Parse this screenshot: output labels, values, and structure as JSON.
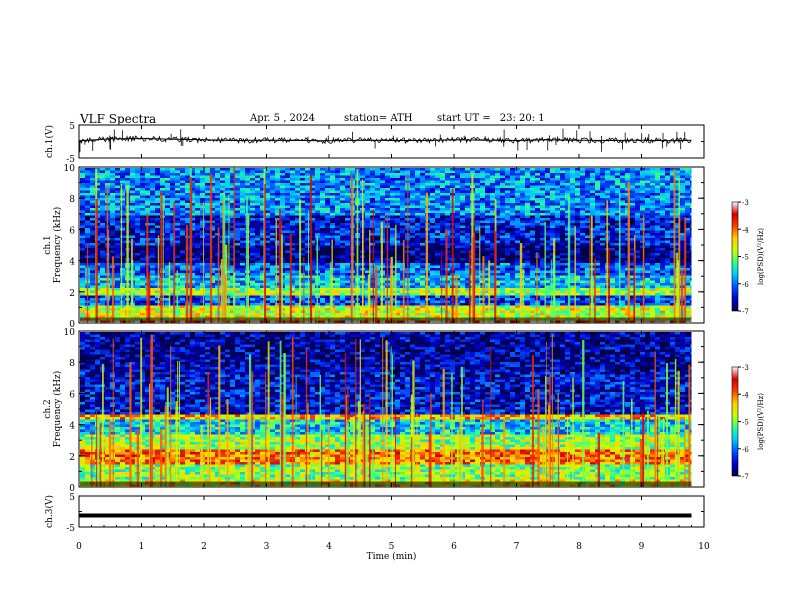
{
  "header": {
    "title": "VLF  Spectra",
    "date": "Apr. 5  , 2024",
    "station": "station= ATH",
    "start_label": "start  UT  =",
    "start_value": "23: 20: 1"
  },
  "colors": {
    "colormap": [
      "#00004a",
      "#0000c8",
      "#0050ff",
      "#00c8ff",
      "#30ff90",
      "#c8ff00",
      "#ffd000",
      "#ff4000",
      "#d00000",
      "#ffffff"
    ]
  },
  "chart_data": [
    {
      "type": "line",
      "id": "ch1-waveform",
      "ylabel": "ch.1(V)",
      "ylim": [
        -5,
        5
      ],
      "yticks": [
        -5,
        5
      ],
      "xlim": [
        0,
        10
      ],
      "x": [
        0,
        0.5,
        1,
        1.5,
        2,
        2.5,
        3,
        3.5,
        4,
        4.5,
        5,
        5.5,
        6,
        6.5,
        7,
        7.5,
        8,
        8.5,
        9,
        9.5,
        9.8
      ],
      "y": [
        0.2,
        0.8,
        0.9,
        0.7,
        0.5,
        0.3,
        0.4,
        0.3,
        0.2,
        0.4,
        0.3,
        0.3,
        0.5,
        0.4,
        0.3,
        0.5,
        0.4,
        0.3,
        0.4,
        0.2,
        0.4
      ]
    },
    {
      "type": "heatmap",
      "id": "ch1-spectrogram",
      "ylabel": "ch.1\nFrequency (kHz)",
      "ylim": [
        0,
        10
      ],
      "yticks": [
        0,
        2,
        4,
        6,
        8,
        10
      ],
      "xlim": [
        0,
        10
      ],
      "data_end_min": 9.8,
      "colorbar": {
        "label": "log(PSD)(V²/Hz)",
        "range": [
          -7,
          -3
        ],
        "ticks": [
          -7,
          -6,
          -5,
          -4,
          -3
        ]
      },
      "bands": [
        {
          "f0": 0,
          "f1": 0.3,
          "level": -3.2
        },
        {
          "f0": 0.3,
          "f1": 1.2,
          "level": -4.7
        },
        {
          "f0": 1.2,
          "f1": 1.9,
          "level": -6.2
        },
        {
          "f0": 1.9,
          "f1": 2.4,
          "level": -4.9
        },
        {
          "f0": 2.4,
          "f1": 3.2,
          "level": -5.7
        },
        {
          "f0": 3.2,
          "f1": 4.0,
          "level": -6.1
        },
        {
          "f0": 4.0,
          "f1": 5.0,
          "level": -6.8
        },
        {
          "f0": 5.0,
          "f1": 7.0,
          "level": -6.4
        },
        {
          "f0": 7.0,
          "f1": 10.0,
          "level": -5.9
        }
      ]
    },
    {
      "type": "heatmap",
      "id": "ch2-spectrogram",
      "ylabel": "ch.2\nFrequency (kHz)",
      "ylim": [
        0,
        10
      ],
      "yticks": [
        0,
        2,
        4,
        6,
        8,
        10
      ],
      "xlim": [
        0,
        10
      ],
      "data_end_min": 9.8,
      "colorbar": {
        "label": "log(PSD)(V²/Hz)",
        "range": [
          -7,
          -3
        ],
        "ticks": [
          -7,
          -6,
          -5,
          -4,
          -3
        ]
      },
      "bands": [
        {
          "f0": 0,
          "f1": 0.5,
          "level": -4.6
        },
        {
          "f0": 0.5,
          "f1": 1.6,
          "level": -5.0
        },
        {
          "f0": 1.6,
          "f1": 2.5,
          "level": -4.0
        },
        {
          "f0": 2.5,
          "f1": 3.5,
          "level": -4.9
        },
        {
          "f0": 3.5,
          "f1": 4.4,
          "level": -5.6
        },
        {
          "f0": 4.4,
          "f1": 4.8,
          "level": -4.3
        },
        {
          "f0": 4.8,
          "f1": 7.5,
          "level": -6.5
        },
        {
          "f0": 7.5,
          "f1": 10.0,
          "level": -6.7
        }
      ]
    },
    {
      "type": "line",
      "id": "ch3-waveform",
      "ylabel": "ch.3(V)",
      "ylim": [
        -5,
        5
      ],
      "yticks": [
        -5,
        5
      ],
      "xlim": [
        0,
        10
      ],
      "xlabel": "Time  (min)",
      "xticks": [
        0,
        1,
        2,
        3,
        4,
        5,
        6,
        7,
        8,
        9,
        10
      ],
      "x": [
        0,
        9.8
      ],
      "y": [
        -1.3,
        -1.3
      ]
    }
  ]
}
